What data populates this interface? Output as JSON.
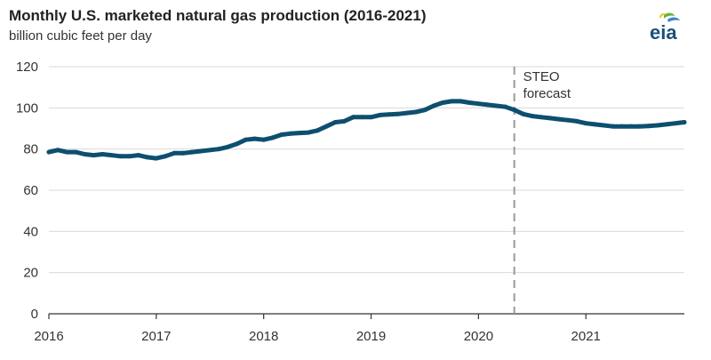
{
  "title": "Monthly U.S. marketed natural gas production (2016-2021)",
  "subtitle": "billion cubic feet per day",
  "logo": {
    "text": "eia",
    "colors": {
      "text": "#1b4f7a",
      "leaf_green": "#6bb33f",
      "leaf_blue": "#3a86c8",
      "leaf_yellow": "#f2c12e"
    }
  },
  "chart_data": {
    "type": "line",
    "title": "Monthly U.S. marketed natural gas production (2016-2021)",
    "ylabel": "billion cubic feet per day",
    "xlabel": "",
    "ylim": [
      0,
      120
    ],
    "yticks": [
      0,
      20,
      40,
      60,
      80,
      100,
      120
    ],
    "xlim": [
      "2016-01",
      "2021-12"
    ],
    "xticks": [
      "2016",
      "2017",
      "2018",
      "2019",
      "2020",
      "2021"
    ],
    "grid": "horizontal",
    "legend": "none",
    "forecast_marker": {
      "date": "2020-05",
      "label_lines": [
        "STEO",
        "forecast"
      ]
    },
    "series": [
      {
        "color": "#0d4f6e",
        "x": [
          "2016-01",
          "2016-02",
          "2016-03",
          "2016-04",
          "2016-05",
          "2016-06",
          "2016-07",
          "2016-08",
          "2016-09",
          "2016-10",
          "2016-11",
          "2016-12",
          "2017-01",
          "2017-02",
          "2017-03",
          "2017-04",
          "2017-05",
          "2017-06",
          "2017-07",
          "2017-08",
          "2017-09",
          "2017-10",
          "2017-11",
          "2017-12",
          "2018-01",
          "2018-02",
          "2018-03",
          "2018-04",
          "2018-05",
          "2018-06",
          "2018-07",
          "2018-08",
          "2018-09",
          "2018-10",
          "2018-11",
          "2018-12",
          "2019-01",
          "2019-02",
          "2019-03",
          "2019-04",
          "2019-05",
          "2019-06",
          "2019-07",
          "2019-08",
          "2019-09",
          "2019-10",
          "2019-11",
          "2019-12",
          "2020-01",
          "2020-02",
          "2020-03",
          "2020-04",
          "2020-05",
          "2020-06",
          "2020-07",
          "2020-08",
          "2020-09",
          "2020-10",
          "2020-11",
          "2020-12",
          "2021-01",
          "2021-02",
          "2021-03",
          "2021-04",
          "2021-05",
          "2021-06",
          "2021-07",
          "2021-08",
          "2021-09",
          "2021-10",
          "2021-11",
          "2021-12"
        ],
        "values": [
          78.5,
          79.5,
          78.5,
          78.5,
          77.5,
          77,
          77.5,
          77,
          76.5,
          76.5,
          77,
          76,
          75.5,
          76.5,
          78,
          78,
          78.5,
          79,
          79.5,
          80,
          81,
          82.5,
          84.5,
          85,
          84.5,
          85.5,
          87,
          87.5,
          87.8,
          88,
          89,
          91,
          93,
          93.5,
          95.5,
          95.5,
          95.5,
          96.5,
          96.8,
          97,
          97.5,
          98,
          99,
          101,
          102.5,
          103.2,
          103.2,
          102.5,
          102,
          101.5,
          101,
          100.5,
          99,
          97,
          96,
          95.5,
          95,
          94.5,
          94,
          93.5,
          92.5,
          92,
          91.5,
          91,
          91,
          91,
          91,
          91.2,
          91.5,
          92,
          92.5,
          93
        ]
      }
    ]
  }
}
